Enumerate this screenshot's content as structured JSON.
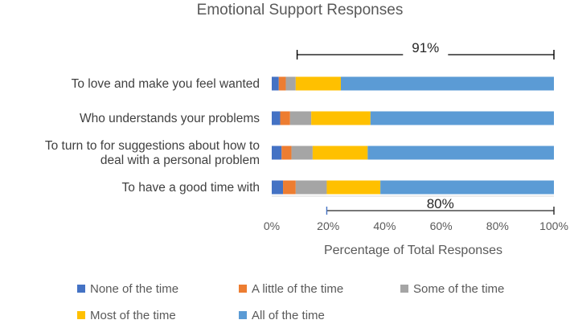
{
  "chart_data": {
    "type": "bar",
    "orientation": "horizontal",
    "stacked": true,
    "title": "Emotional Support Responses",
    "xlabel": "Percentage of Total Responses",
    "ylabel": "",
    "xlim": [
      0,
      100
    ],
    "x_ticks": [
      "0%",
      "20%",
      "40%",
      "60%",
      "80%",
      "100%"
    ],
    "grid": false,
    "legend_position": "bottom",
    "categories": [
      [
        "To love and make you feel wanted"
      ],
      [
        "Who understands your problems"
      ],
      [
        "To turn to for suggestions about how to",
        "deal with a personal problem"
      ],
      [
        "To have a good time with"
      ]
    ],
    "series": [
      {
        "name": "None of the time",
        "color": "#4472C4",
        "values": [
          2.5,
          3,
          3.5,
          4
        ]
      },
      {
        "name": "A little of the time",
        "color": "#ED7D31",
        "values": [
          2.5,
          3.5,
          3.5,
          4.5
        ]
      },
      {
        "name": "Some of the time",
        "color": "#A5A5A5",
        "values": [
          3.5,
          7.5,
          7.5,
          11
        ]
      },
      {
        "name": "Most of the time",
        "color": "#FFC000",
        "values": [
          16,
          21,
          19.5,
          19
        ]
      },
      {
        "name": "All of the time",
        "color": "#5B9BD5",
        "values": [
          75.5,
          65,
          66,
          61.5
        ]
      }
    ],
    "annotations": [
      {
        "label": "91%",
        "from": 9,
        "to": 100,
        "attached_to": "To love and make you feel wanted",
        "side": "above"
      },
      {
        "label": "80%",
        "from": 19.5,
        "to": 100,
        "attached_to": "To have a good time with",
        "side": "below"
      }
    ]
  }
}
